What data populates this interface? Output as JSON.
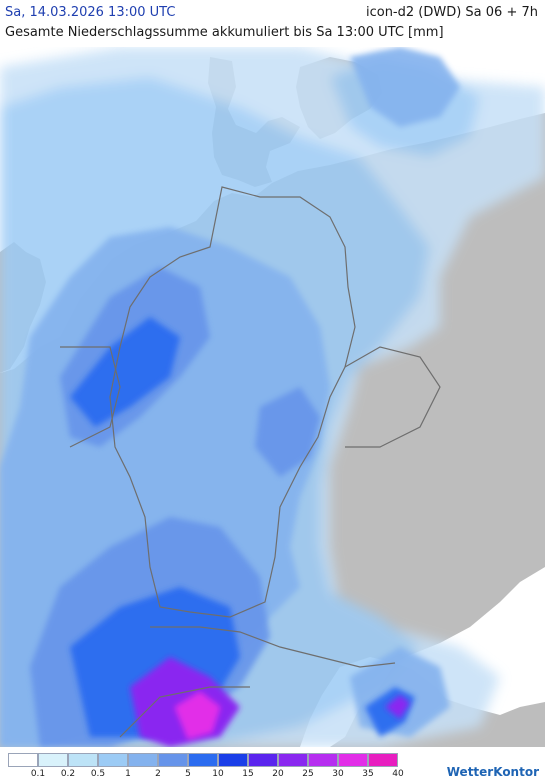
{
  "header": {
    "date_label": "Sa, 14.03.2026 13:00 UTC",
    "model_label": "icon-d2 (DWD) Sa 06 + 7h",
    "title": "Gesamte Niederschlagssumme akkumuliert bis Sa 13:00 UTC [mm]"
  },
  "legend": {
    "items": [
      {
        "value": "0.1",
        "color": "#ffffff"
      },
      {
        "value": "0.2",
        "color": "#d9f2fb"
      },
      {
        "value": "0.5",
        "color": "#bde3f7"
      },
      {
        "value": "1",
        "color": "#9ccbf5"
      },
      {
        "value": "2",
        "color": "#84b2ee"
      },
      {
        "value": "5",
        "color": "#6694ea"
      },
      {
        "value": "10",
        "color": "#2c6cf0"
      },
      {
        "value": "15",
        "color": "#1a3ee8"
      },
      {
        "value": "20",
        "color": "#5a25ee"
      },
      {
        "value": "25",
        "color": "#8a28f0"
      },
      {
        "value": "30",
        "color": "#b62ef0"
      },
      {
        "value": "35",
        "color": "#e22ee8"
      },
      {
        "value": "40",
        "color": "#e81ec0"
      }
    ]
  },
  "brand": "WetterKontor",
  "colors": {
    "sea": "#ffffff",
    "land": "#bdbdbd",
    "border": "#6e6e6e"
  }
}
